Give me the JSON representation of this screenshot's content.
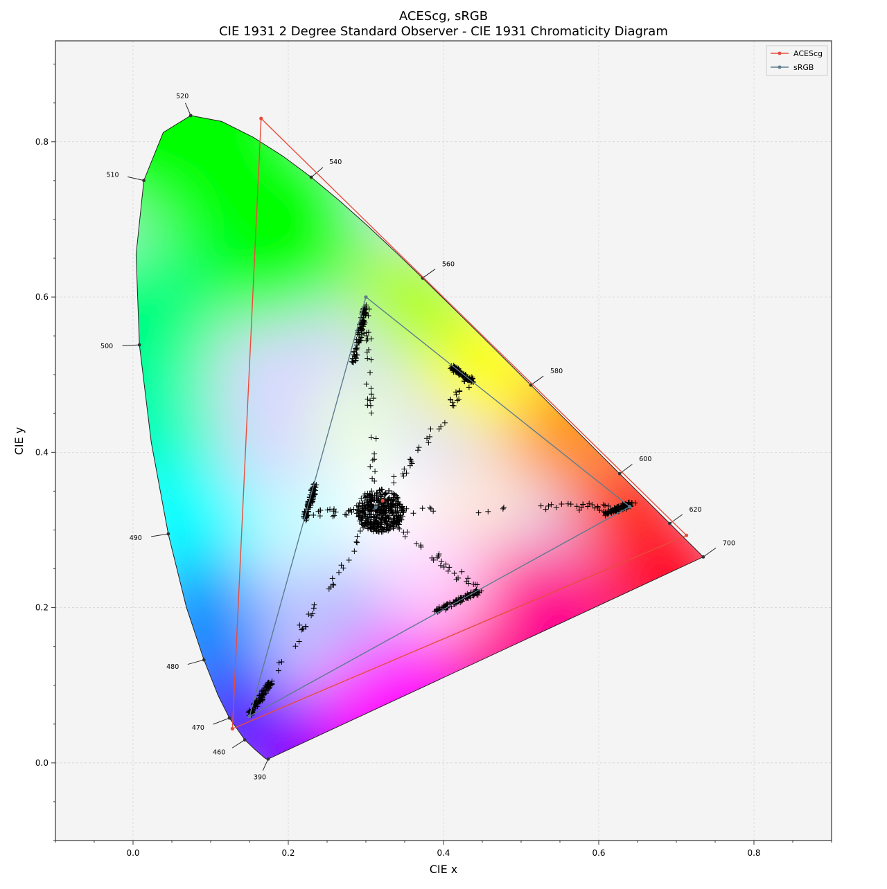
{
  "chart_data": {
    "type": "scatter",
    "title": "ACEScg, sRGB",
    "subtitle": "CIE 1931 2 Degree Standard Observer - CIE 1931 Chromaticity Diagram",
    "xlabel": "CIE x",
    "ylabel": "CIE y",
    "xlim": [
      -0.1,
      0.9
    ],
    "ylim": [
      -0.1,
      0.93
    ],
    "x_ticks": [
      0.0,
      0.2,
      0.4,
      0.6,
      0.8
    ],
    "x_tick_labels": [
      "0.0",
      "0.2",
      "0.4",
      "0.6",
      "0.8"
    ],
    "y_ticks": [
      0.0,
      0.2,
      0.4,
      0.6,
      0.8
    ],
    "y_tick_labels": [
      "0.0",
      "0.2",
      "0.4",
      "0.6",
      "0.8"
    ],
    "grid": true,
    "legend_position": "top-right",
    "spectral_locus": [
      [
        0.1741,
        0.005
      ],
      [
        0.1738,
        0.0049
      ],
      [
        0.1736,
        0.0049
      ],
      [
        0.1733,
        0.0048
      ],
      [
        0.1726,
        0.0048
      ],
      [
        0.1714,
        0.0051
      ],
      [
        0.1689,
        0.0069
      ],
      [
        0.1644,
        0.0109
      ],
      [
        0.1566,
        0.0177
      ],
      [
        0.144,
        0.0297
      ],
      [
        0.1241,
        0.0578
      ],
      [
        0.1096,
        0.0868
      ],
      [
        0.0913,
        0.1327
      ],
      [
        0.0687,
        0.2007
      ],
      [
        0.0454,
        0.295
      ],
      [
        0.0235,
        0.4127
      ],
      [
        0.0082,
        0.5384
      ],
      [
        0.0039,
        0.6548
      ],
      [
        0.0139,
        0.7502
      ],
      [
        0.0389,
        0.812
      ],
      [
        0.0743,
        0.8338
      ],
      [
        0.1142,
        0.8262
      ],
      [
        0.1547,
        0.8059
      ],
      [
        0.1929,
        0.7816
      ],
      [
        0.2296,
        0.7543
      ],
      [
        0.2658,
        0.7243
      ],
      [
        0.3016,
        0.6923
      ],
      [
        0.3373,
        0.6589
      ],
      [
        0.3731,
        0.6245
      ],
      [
        0.4087,
        0.5896
      ],
      [
        0.4441,
        0.5547
      ],
      [
        0.4788,
        0.5202
      ],
      [
        0.5125,
        0.4866
      ],
      [
        0.5448,
        0.4544
      ],
      [
        0.5752,
        0.4242
      ],
      [
        0.6029,
        0.3965
      ],
      [
        0.627,
        0.3725
      ],
      [
        0.6482,
        0.3514
      ],
      [
        0.6658,
        0.334
      ],
      [
        0.6801,
        0.3197
      ],
      [
        0.6915,
        0.3083
      ],
      [
        0.7006,
        0.2993
      ],
      [
        0.7079,
        0.292
      ],
      [
        0.714,
        0.2859
      ],
      [
        0.719,
        0.2809
      ],
      [
        0.723,
        0.277
      ],
      [
        0.726,
        0.274
      ],
      [
        0.7283,
        0.2717
      ],
      [
        0.73,
        0.27
      ],
      [
        0.732,
        0.268
      ],
      [
        0.7347,
        0.2653
      ]
    ],
    "wavelength_labels": [
      {
        "label": "390",
        "x": 0.1741,
        "y": 0.005,
        "dx": -12,
        "dy": 26
      },
      {
        "label": "460",
        "x": 0.144,
        "y": 0.0297,
        "dx": -28,
        "dy": 18
      },
      {
        "label": "470",
        "x": 0.1241,
        "y": 0.0578,
        "dx": -36,
        "dy": 14
      },
      {
        "label": "480",
        "x": 0.0913,
        "y": 0.1327,
        "dx": -36,
        "dy": 10
      },
      {
        "label": "490",
        "x": 0.0454,
        "y": 0.295,
        "dx": -38,
        "dy": 6
      },
      {
        "label": "500",
        "x": 0.0082,
        "y": 0.5384,
        "dx": -38,
        "dy": 2
      },
      {
        "label": "510",
        "x": 0.0139,
        "y": 0.7502,
        "dx": -36,
        "dy": -8
      },
      {
        "label": "520",
        "x": 0.0743,
        "y": 0.8338,
        "dx": -12,
        "dy": -28
      },
      {
        "label": "540",
        "x": 0.2296,
        "y": 0.7543,
        "dx": 26,
        "dy": -22
      },
      {
        "label": "560",
        "x": 0.3731,
        "y": 0.6245,
        "dx": 28,
        "dy": -20
      },
      {
        "label": "580",
        "x": 0.5125,
        "y": 0.4866,
        "dx": 28,
        "dy": -20
      },
      {
        "label": "600",
        "x": 0.627,
        "y": 0.3725,
        "dx": 28,
        "dy": -21
      },
      {
        "label": "620",
        "x": 0.6915,
        "y": 0.3083,
        "dx": 28,
        "dy": -20
      },
      {
        "label": "700",
        "x": 0.7347,
        "y": 0.2653,
        "dx": 28,
        "dy": -20
      }
    ],
    "series": [
      {
        "name": "ACEScg",
        "color": "#e74c3c",
        "primaries": [
          [
            0.713,
            0.293
          ],
          [
            0.165,
            0.83
          ],
          [
            0.128,
            0.044
          ]
        ],
        "whitepoint": [
          0.32168,
          0.33767
        ]
      },
      {
        "name": "sRGB",
        "color": "#5d7b8e",
        "primaries": [
          [
            0.64,
            0.33
          ],
          [
            0.3,
            0.6
          ],
          [
            0.15,
            0.06
          ]
        ],
        "whitepoint": [
          0.3127,
          0.329
        ]
      }
    ],
    "sample_points_color": "#000000",
    "sample_arms": [
      {
        "from": [
          0.313,
          0.325
        ],
        "to": [
          0.3,
          0.59
        ],
        "end_cluster": [
          [
            0.284,
            0.515
          ],
          [
            0.3,
            0.59
          ]
        ],
        "n": 40
      },
      {
        "from": [
          0.313,
          0.325
        ],
        "to": [
          0.435,
          0.495
        ],
        "end_cluster": [
          [
            0.41,
            0.51
          ],
          [
            0.437,
            0.492
          ]
        ],
        "n": 40
      },
      {
        "from": [
          0.313,
          0.325
        ],
        "to": [
          0.64,
          0.33
        ],
        "end_cluster": [
          [
            0.605,
            0.32
          ],
          [
            0.645,
            0.335
          ]
        ],
        "n": 40
      },
      {
        "from": [
          0.313,
          0.325
        ],
        "to": [
          0.445,
          0.222
        ],
        "end_cluster": [
          [
            0.39,
            0.195
          ],
          [
            0.448,
            0.222
          ]
        ],
        "n": 40
      },
      {
        "from": [
          0.313,
          0.325
        ],
        "to": [
          0.15,
          0.062
        ],
        "end_cluster": [
          [
            0.15,
            0.062
          ],
          [
            0.178,
            0.105
          ]
        ],
        "n": 40
      },
      {
        "from": [
          0.313,
          0.325
        ],
        "to": [
          0.225,
          0.32
        ],
        "end_cluster": [
          [
            0.222,
            0.315
          ],
          [
            0.235,
            0.358
          ]
        ],
        "n": 30
      }
    ]
  }
}
